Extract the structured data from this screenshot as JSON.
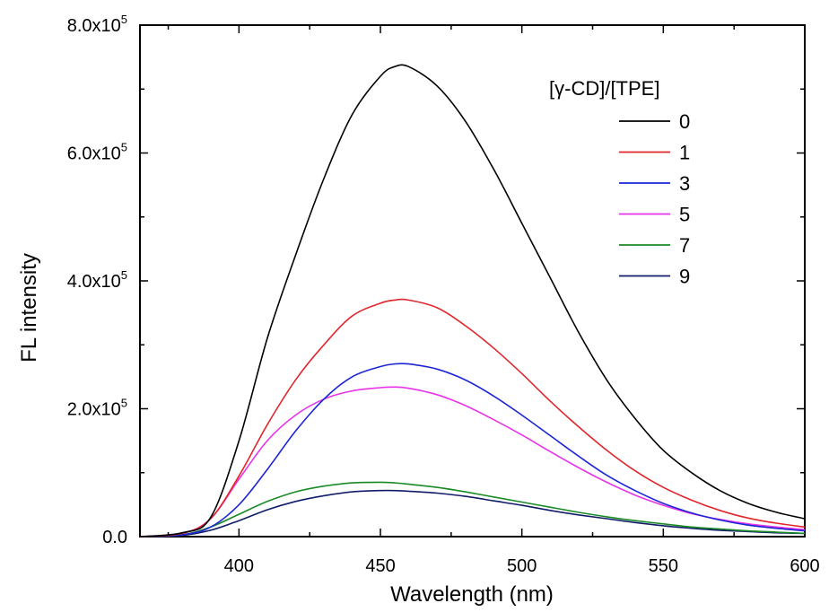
{
  "chart_data": {
    "type": "line",
    "title": "",
    "xlabel": "Wavelength (nm)",
    "ylabel": "FL intensity",
    "xlim": [
      365,
      600
    ],
    "ylim": [
      0,
      800000
    ],
    "x_ticks": [
      400,
      450,
      500,
      550,
      600
    ],
    "x_tick_labels": [
      "400",
      "450",
      "500",
      "550",
      "600"
    ],
    "y_ticks": [
      0,
      200000,
      400000,
      600000,
      800000
    ],
    "y_tick_labels": [
      {
        "mantissa": "0.0",
        "exp": ""
      },
      {
        "mantissa": "2.0x10",
        "exp": "5"
      },
      {
        "mantissa": "4.0x10",
        "exp": "5"
      },
      {
        "mantissa": "6.0x10",
        "exp": "5"
      },
      {
        "mantissa": "8.0x10",
        "exp": "5"
      }
    ],
    "grid": false,
    "legend": {
      "title": "[γ-CD]/[TPE]",
      "position": "top-right"
    },
    "x": [
      365,
      380,
      390,
      400,
      410,
      420,
      430,
      440,
      450,
      455,
      460,
      470,
      480,
      490,
      500,
      510,
      520,
      530,
      540,
      550,
      560,
      570,
      580,
      590,
      600
    ],
    "series": [
      {
        "name": "0",
        "color": "#000000",
        "values": [
          0,
          6000,
          30000,
          150000,
          310000,
          440000,
          560000,
          660000,
          720000,
          735000,
          735000,
          705000,
          650000,
          575000,
          490000,
          405000,
          320000,
          245000,
          185000,
          135000,
          100000,
          72000,
          52000,
          38000,
          28000
        ]
      },
      {
        "name": "1",
        "color": "#e0262d",
        "values": [
          0,
          5000,
          28000,
          95000,
          175000,
          245000,
          300000,
          345000,
          365000,
          370000,
          370000,
          358000,
          330000,
          295000,
          255000,
          212000,
          172000,
          135000,
          103000,
          77000,
          57000,
          41000,
          29000,
          21000,
          15000
        ]
      },
      {
        "name": "3",
        "color": "#1c25d6",
        "values": [
          0,
          3000,
          15000,
          50000,
          105000,
          165000,
          215000,
          250000,
          266000,
          270000,
          270000,
          262000,
          245000,
          220000,
          190000,
          158000,
          126000,
          96000,
          72000,
          52000,
          37000,
          26000,
          18000,
          13000,
          9000
        ]
      },
      {
        "name": "5",
        "color": "#e834e8",
        "values": [
          0,
          5000,
          28000,
          90000,
          150000,
          190000,
          215000,
          228000,
          233000,
          234000,
          232000,
          222000,
          205000,
          183000,
          159000,
          133000,
          108000,
          85000,
          65000,
          49000,
          36000,
          27000,
          20000,
          15000,
          11000
        ]
      },
      {
        "name": "7",
        "color": "#1a8a26",
        "values": [
          0,
          3000,
          15000,
          35000,
          55000,
          70000,
          79000,
          84000,
          85000,
          84000,
          82000,
          77000,
          70000,
          62000,
          54000,
          46000,
          38000,
          31000,
          25000,
          20000,
          15000,
          12000,
          9000,
          7000,
          5000
        ]
      },
      {
        "name": "9",
        "color": "#101c6a",
        "values": [
          0,
          2000,
          10000,
          25000,
          42000,
          55000,
          64000,
          70000,
          72000,
          72000,
          71000,
          68000,
          63000,
          56000,
          49000,
          41000,
          34000,
          28000,
          22000,
          17000,
          13000,
          10000,
          8000,
          6000,
          5000
        ]
      }
    ]
  }
}
